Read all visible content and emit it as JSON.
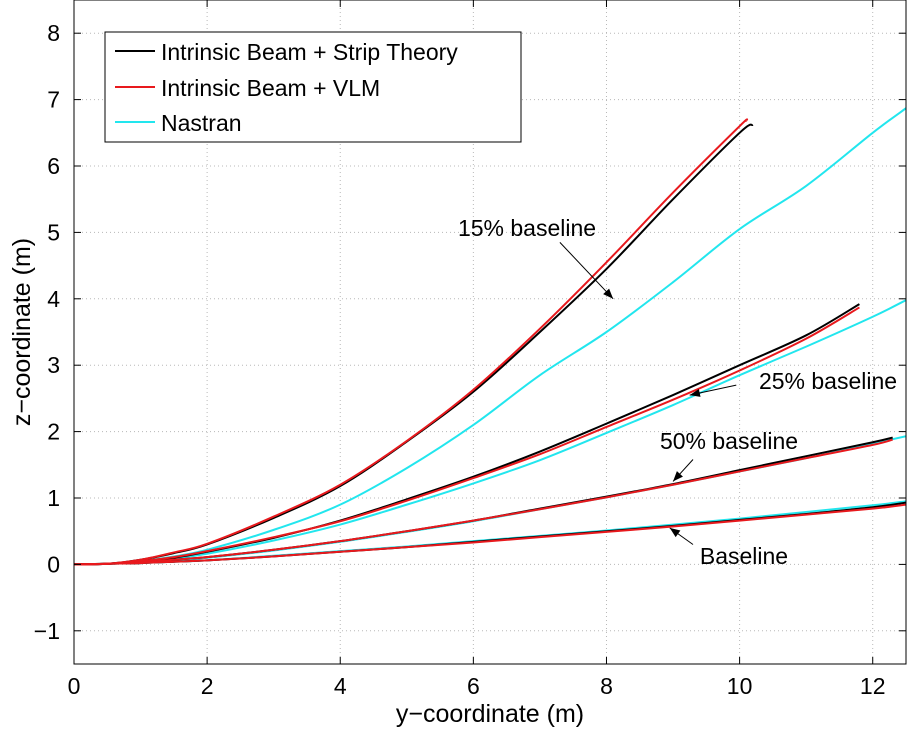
{
  "chart_data": {
    "type": "line",
    "title": "",
    "xlabel": "y−coordinate (m)",
    "ylabel": "z−coordinate (m)",
    "xlim": [
      0,
      12.5
    ],
    "ylim": [
      -1.5,
      8.5
    ],
    "xticks": [
      0,
      2,
      4,
      6,
      8,
      10,
      12
    ],
    "yticks": [
      -1,
      0,
      1,
      2,
      3,
      4,
      5,
      6,
      7,
      8
    ],
    "xtick_labels": [
      "0",
      "2",
      "4",
      "6",
      "8",
      "10",
      "12"
    ],
    "ytick_labels": [
      "−1",
      "0",
      "1",
      "2",
      "3",
      "4",
      "5",
      "6",
      "7",
      "8"
    ],
    "grid": true,
    "legend_position": "top-left",
    "legend": [
      {
        "label": "Intrinsic Beam + Strip Theory",
        "color": "#000000"
      },
      {
        "label": "Intrinsic Beam + VLM",
        "color": "#e8191d"
      },
      {
        "label": "Nastran",
        "color": "#22e6ee"
      }
    ],
    "series": [
      {
        "group": "15% baseline",
        "method": "Intrinsic Beam + Strip Theory",
        "color": "#000000",
        "x": [
          0,
          0.5,
          1,
          1.5,
          2,
          3,
          4,
          5,
          6,
          7,
          8,
          9,
          10,
          10.2
        ],
        "y": [
          0,
          0.01,
          0.07,
          0.17,
          0.3,
          0.7,
          1.18,
          1.85,
          2.6,
          3.5,
          4.45,
          5.5,
          6.5,
          6.62
        ]
      },
      {
        "group": "15% baseline",
        "method": "Intrinsic Beam + VLM",
        "color": "#e8191d",
        "x": [
          0,
          0.5,
          1,
          1.5,
          2,
          3,
          4,
          5,
          6,
          7,
          8,
          9,
          10,
          10.1
        ],
        "y": [
          0,
          0.01,
          0.07,
          0.18,
          0.31,
          0.72,
          1.2,
          1.86,
          2.63,
          3.55,
          4.55,
          5.6,
          6.6,
          6.68
        ]
      },
      {
        "group": "15% baseline",
        "method": "Nastran",
        "color": "#22e6ee",
        "x": [
          0,
          0.5,
          1,
          1.5,
          2,
          3,
          4,
          5,
          6,
          7,
          8,
          9,
          10,
          11,
          12,
          12.5
        ],
        "y": [
          0,
          0.01,
          0.05,
          0.12,
          0.22,
          0.52,
          0.9,
          1.45,
          2.1,
          2.85,
          3.5,
          4.25,
          5.05,
          5.7,
          6.5,
          6.87
        ]
      },
      {
        "group": "25% baseline",
        "method": "Intrinsic Beam + Strip Theory",
        "color": "#000000",
        "x": [
          0,
          0.5,
          1,
          1.5,
          2,
          3,
          4,
          5,
          6,
          7,
          8,
          9,
          10,
          11,
          11.8
        ],
        "y": [
          0,
          0.01,
          0.05,
          0.1,
          0.19,
          0.4,
          0.66,
          0.98,
          1.32,
          1.7,
          2.12,
          2.55,
          3.0,
          3.45,
          3.92
        ]
      },
      {
        "group": "25% baseline",
        "method": "Intrinsic Beam + VLM",
        "color": "#e8191d",
        "x": [
          0,
          0.5,
          1,
          1.5,
          2,
          3,
          4,
          5,
          6,
          7,
          8,
          9,
          10,
          11,
          11.8
        ],
        "y": [
          0,
          0.01,
          0.05,
          0.11,
          0.2,
          0.41,
          0.65,
          0.96,
          1.3,
          1.66,
          2.07,
          2.48,
          2.92,
          3.4,
          3.87
        ]
      },
      {
        "group": "25% baseline",
        "method": "Nastran",
        "color": "#22e6ee",
        "x": [
          0,
          0.5,
          1,
          1.5,
          2,
          3,
          4,
          5,
          6,
          7,
          8,
          9,
          10,
          11,
          12,
          12.5
        ],
        "y": [
          0,
          0.01,
          0.04,
          0.09,
          0.16,
          0.36,
          0.6,
          0.9,
          1.22,
          1.57,
          1.98,
          2.4,
          2.85,
          3.28,
          3.73,
          3.98
        ]
      },
      {
        "group": "50% baseline",
        "method": "Intrinsic Beam + Strip Theory",
        "color": "#000000",
        "x": [
          0,
          0.5,
          1,
          1.5,
          2,
          3,
          4,
          5,
          6,
          7,
          8,
          9,
          10,
          11,
          12,
          12.3
        ],
        "y": [
          0,
          0.01,
          0.03,
          0.07,
          0.11,
          0.22,
          0.35,
          0.5,
          0.66,
          0.84,
          1.02,
          1.21,
          1.42,
          1.63,
          1.84,
          1.91
        ]
      },
      {
        "group": "50% baseline",
        "method": "Intrinsic Beam + VLM",
        "color": "#e8191d",
        "x": [
          0,
          0.5,
          1,
          1.5,
          2,
          3,
          4,
          5,
          6,
          7,
          8,
          9,
          10,
          11,
          12,
          12.3
        ],
        "y": [
          0,
          0.01,
          0.03,
          0.07,
          0.11,
          0.22,
          0.35,
          0.5,
          0.66,
          0.83,
          1.01,
          1.2,
          1.4,
          1.6,
          1.8,
          1.88
        ]
      },
      {
        "group": "50% baseline",
        "method": "Nastran",
        "color": "#22e6ee",
        "x": [
          0,
          0.5,
          1,
          1.5,
          2,
          3,
          4,
          5,
          6,
          7,
          8,
          9,
          10,
          11,
          12,
          12.5
        ],
        "y": [
          0,
          0.01,
          0.03,
          0.06,
          0.1,
          0.21,
          0.34,
          0.49,
          0.65,
          0.83,
          1.01,
          1.2,
          1.4,
          1.6,
          1.82,
          1.93
        ]
      },
      {
        "group": "Baseline",
        "method": "Intrinsic Beam + Strip Theory",
        "color": "#000000",
        "x": [
          0,
          0.5,
          1,
          1.5,
          2,
          3,
          4,
          5,
          6,
          7,
          8,
          9,
          10,
          11,
          12,
          12.5
        ],
        "y": [
          0,
          0.01,
          0.02,
          0.04,
          0.06,
          0.12,
          0.19,
          0.26,
          0.34,
          0.42,
          0.5,
          0.58,
          0.67,
          0.76,
          0.86,
          0.93
        ]
      },
      {
        "group": "Baseline",
        "method": "Intrinsic Beam + VLM",
        "color": "#e8191d",
        "x": [
          0,
          0.5,
          1,
          1.5,
          2,
          3,
          4,
          5,
          6,
          7,
          8,
          9,
          10,
          11,
          12,
          12.5
        ],
        "y": [
          0,
          0.01,
          0.02,
          0.04,
          0.06,
          0.12,
          0.19,
          0.26,
          0.33,
          0.41,
          0.49,
          0.57,
          0.66,
          0.75,
          0.84,
          0.9
        ]
      },
      {
        "group": "Baseline",
        "method": "Nastran",
        "color": "#22e6ee",
        "x": [
          0,
          0.5,
          1,
          1.5,
          2,
          3,
          4,
          5,
          6,
          7,
          8,
          9,
          10,
          11,
          12,
          12.5
        ],
        "y": [
          0,
          0.01,
          0.02,
          0.04,
          0.06,
          0.13,
          0.2,
          0.27,
          0.35,
          0.43,
          0.51,
          0.6,
          0.69,
          0.79,
          0.89,
          0.95
        ]
      }
    ],
    "annotations": [
      {
        "text": "15% baseline",
        "tail_x": 7.3,
        "tail_y": 4.85,
        "head_x": 8.1,
        "head_y": 4.0
      },
      {
        "text": "25% baseline",
        "tail_x": 9.95,
        "tail_y": 2.7,
        "head_x": 9.25,
        "head_y": 2.55
      },
      {
        "text": "50% baseline",
        "tail_x": 9.3,
        "tail_y": 1.58,
        "head_x": 9.0,
        "head_y": 1.25
      },
      {
        "text": "Baseline",
        "tail_x": 9.3,
        "tail_y": 0.3,
        "head_x": 8.95,
        "head_y": 0.55
      }
    ]
  }
}
